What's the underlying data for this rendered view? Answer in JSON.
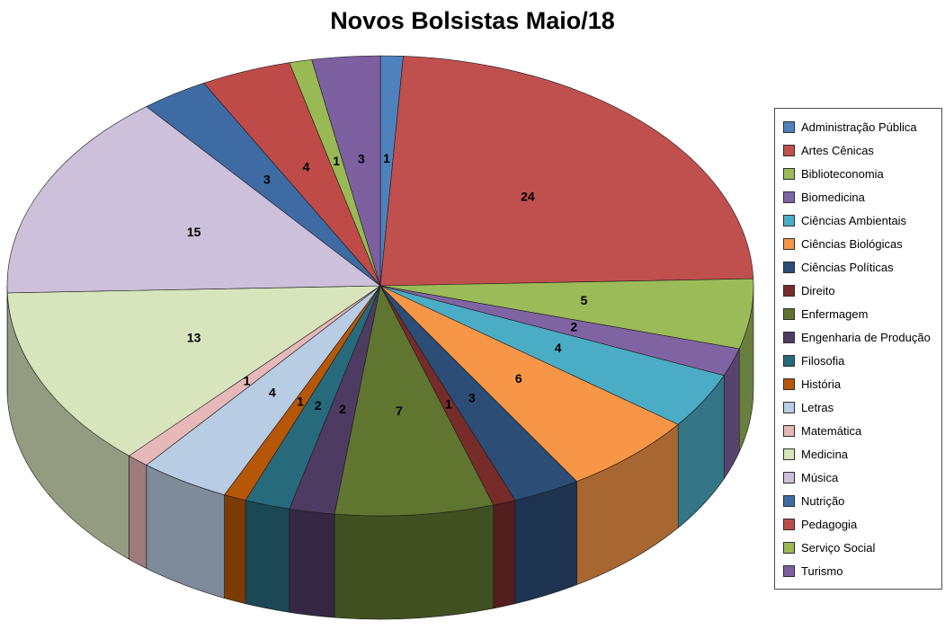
{
  "title": "Novos Bolsistas Maio/18",
  "chart_data": {
    "type": "pie",
    "style": "3d",
    "title": "Novos Bolsistas Maio/18",
    "legend_position": "right",
    "labels_shown": "values",
    "start_angle_deg": 0,
    "direction": "clockwise",
    "total": 102,
    "series": [
      {
        "label": "Administração Pública",
        "value": 1,
        "color": "#4F81BD"
      },
      {
        "label": "Artes Cênicas",
        "value": 24,
        "color": "#C0504D"
      },
      {
        "label": "Biblioteconomia",
        "value": 5,
        "color": "#9BBB59"
      },
      {
        "label": "Biomedicina",
        "value": 2,
        "color": "#8064A2"
      },
      {
        "label": "Ciências Ambientais",
        "value": 4,
        "color": "#4BACC6"
      },
      {
        "label": "Ciências Biológicas",
        "value": 6,
        "color": "#F79646"
      },
      {
        "label": "Ciências Políticas",
        "value": 3,
        "color": "#2C4D75"
      },
      {
        "label": "Direito",
        "value": 1,
        "color": "#772C2A"
      },
      {
        "label": "Enfermagem",
        "value": 7,
        "color": "#5F7530"
      },
      {
        "label": "Engenharia de Produção",
        "value": 2,
        "color": "#4D3B62"
      },
      {
        "label": "Filosofia",
        "value": 2,
        "color": "#276A7C"
      },
      {
        "label": "História",
        "value": 1,
        "color": "#B65708"
      },
      {
        "label": "Letras",
        "value": 4,
        "color": "#B8CCE4"
      },
      {
        "label": "Matemática",
        "value": 1,
        "color": "#E6B8B7"
      },
      {
        "label": "Medicina",
        "value": 13,
        "color": "#D8E4BC"
      },
      {
        "label": "Música",
        "value": 15,
        "color": "#CCC0DA"
      },
      {
        "label": "Nutrição",
        "value": 3,
        "color": "#3F6BA5"
      },
      {
        "label": "Pedagogia",
        "value": 4,
        "color": "#BE4B48"
      },
      {
        "label": "Serviço Social",
        "value": 1,
        "color": "#98B954"
      },
      {
        "label": "Turismo",
        "value": 3,
        "color": "#7D60A0"
      }
    ]
  }
}
